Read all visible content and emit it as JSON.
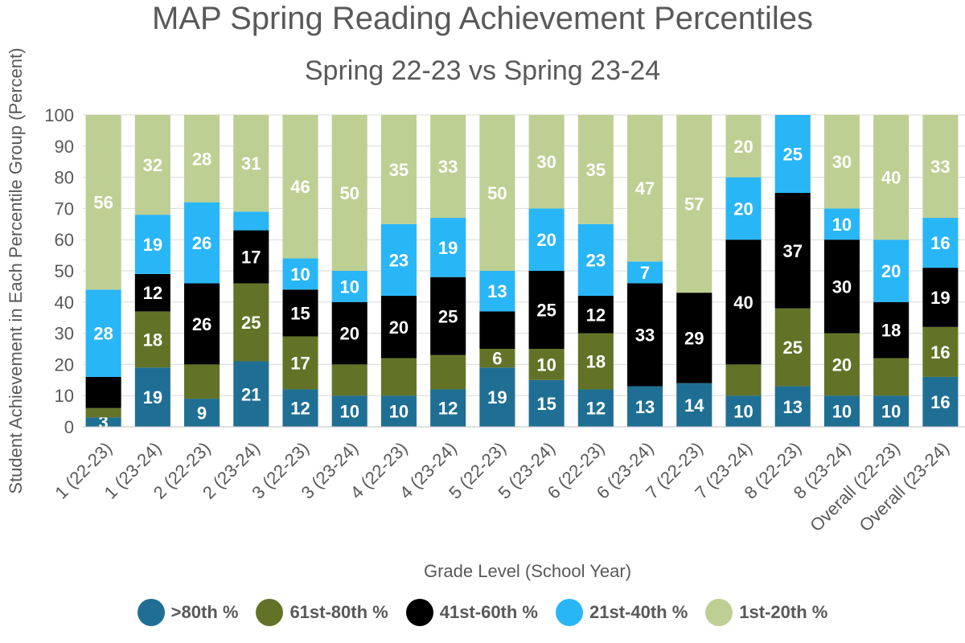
{
  "chart_data": {
    "type": "bar",
    "stacked": true,
    "title": "MAP Spring Reading Achievement Percentiles",
    "subtitle": "Spring 22-23 vs Spring 23-24",
    "xlabel": "Grade Level (School Year)",
    "ylabel": "Student Achievement in Each Percentile Group (Percent)",
    "ylim": [
      0,
      100
    ],
    "yticks": [
      0,
      10,
      20,
      30,
      40,
      50,
      60,
      70,
      80,
      90,
      100
    ],
    "grid": true,
    "legend_position": "bottom",
    "categories": [
      "1 (22-23)",
      "1 (23-24)",
      "2 (22-23)",
      "2 (23-24)",
      "3 (22-23)",
      "3 (23-24)",
      "4 (22-23)",
      "4 (23-24)",
      "5 (22-23)",
      "5 (23-24)",
      "6 (22-23)",
      "6 (23-24)",
      "7 (22-23)",
      "7 (23-24)",
      "8 (22-23)",
      "8 (23-24)",
      "Overall (22-23)",
      "Overall (23-24)"
    ],
    "series": [
      {
        "name": ">80th %",
        "color": "#1f6f94",
        "values": [
          3,
          19,
          9,
          21,
          12,
          10,
          10,
          12,
          19,
          15,
          12,
          13,
          14,
          10,
          13,
          10,
          10,
          16
        ],
        "labels": [
          "3",
          "19",
          "9",
          "21",
          "12",
          "10",
          "10",
          "12",
          "19",
          "15",
          "12",
          "13",
          "14",
          "10",
          "13",
          "10",
          "10",
          "16"
        ]
      },
      {
        "name": "61st-80th %",
        "color": "#627327",
        "values": [
          3,
          18,
          11,
          25,
          17,
          10,
          12,
          11,
          6,
          10,
          18,
          0,
          0,
          10,
          25,
          20,
          12,
          16
        ],
        "labels": [
          "",
          "18",
          "",
          "25",
          "17",
          "",
          "",
          "",
          "6",
          "10",
          "18",
          "",
          "",
          "",
          "25",
          "20",
          "",
          "16"
        ]
      },
      {
        "name": "41st-60th %",
        "color": "#000000",
        "values": [
          10,
          12,
          26,
          17,
          15,
          20,
          20,
          25,
          12,
          25,
          12,
          33,
          29,
          40,
          37,
          30,
          18,
          19
        ],
        "labels": [
          "",
          "12",
          "26",
          "17",
          "15",
          "20",
          "20",
          "25",
          "",
          "25",
          "12",
          "33",
          "29",
          "40",
          "37",
          "30",
          "18",
          "19"
        ]
      },
      {
        "name": "21st-40th %",
        "color": "#29b6f6",
        "values": [
          28,
          19,
          26,
          6,
          10,
          10,
          23,
          19,
          13,
          20,
          23,
          7,
          0,
          20,
          25,
          10,
          20,
          16
        ],
        "labels": [
          "28",
          "19",
          "26",
          "",
          "10",
          "10",
          "23",
          "19",
          "13",
          "20",
          "23",
          "7",
          "",
          "20",
          "25",
          "10",
          "20",
          "16"
        ]
      },
      {
        "name": "1st-20th %",
        "color": "#becf93",
        "values": [
          56,
          32,
          28,
          31,
          46,
          50,
          35,
          33,
          50,
          30,
          35,
          47,
          57,
          20,
          0,
          30,
          40,
          33
        ],
        "labels": [
          "56",
          "32",
          "28",
          "31",
          "46",
          "50",
          "35",
          "33",
          "50",
          "30",
          "35",
          "47",
          "57",
          "20",
          "",
          "30",
          "40",
          "33"
        ]
      }
    ]
  }
}
